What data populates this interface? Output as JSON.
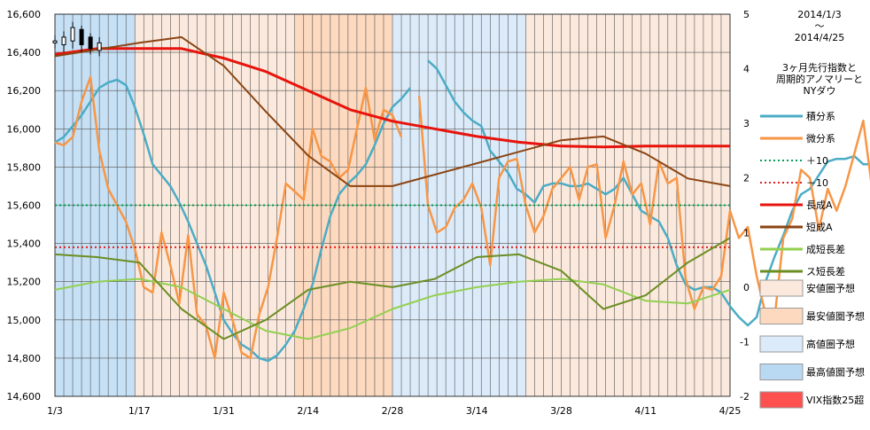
{
  "chart_data": {
    "type": "line",
    "title_lines": [
      "2014/1/3",
      "～",
      "2014/4/25"
    ],
    "subtitle_lines": [
      "3ヶ月先行指数と",
      "周期的アノマリーと",
      "NYダウ"
    ],
    "x_tick_labels": [
      "1/3",
      "1/17",
      "1/31",
      "2/14",
      "2/28",
      "3/14",
      "3/28",
      "4/11",
      "4/25"
    ],
    "left_axis": {
      "min": 14600,
      "max": 16600,
      "step": 200,
      "labels": [
        "14,600",
        "14,800",
        "15,000",
        "15,200",
        "15,400",
        "15,600",
        "15,800",
        "16,000",
        "16,200",
        "16,400",
        "16,600"
      ]
    },
    "right_axis": {
      "min": -2,
      "max": 5,
      "step": 1,
      "labels": [
        "-2",
        "-1",
        "0",
        "1",
        "2",
        "3",
        "4",
        "5"
      ]
    },
    "grid": true,
    "legend_position": "right",
    "num_days": 77,
    "background_regions": [
      {
        "kind": "最高値圏予想",
        "from": 0,
        "to": 9,
        "color": "#c6e0f5"
      },
      {
        "kind": "安値圏予想",
        "from": 9,
        "to": 27,
        "color": "#fbe9dd"
      },
      {
        "kind": "最安値圏予想",
        "from": 27,
        "to": 38,
        "color": "#fcd9bf"
      },
      {
        "kind": "高値圏予想",
        "from": 38,
        "to": 53,
        "color": "#dcebf9"
      },
      {
        "kind": "安値圏予想",
        "from": 53,
        "to": 77,
        "color": "#fbe9dd"
      }
    ],
    "dow_candles": [
      {
        "day": 0,
        "open": 16450,
        "close": 16460,
        "high": 16490,
        "low": 16420
      },
      {
        "day": 1,
        "open": 16440,
        "close": 16480,
        "high": 16510,
        "low": 16400
      },
      {
        "day": 2,
        "open": 16460,
        "close": 16530,
        "high": 16560,
        "low": 16420
      },
      {
        "day": 3,
        "open": 16520,
        "close": 16440,
        "high": 16540,
        "low": 16400
      },
      {
        "day": 4,
        "open": 16480,
        "close": 16420,
        "high": 16500,
        "low": 16390
      },
      {
        "day": 5,
        "open": 16410,
        "close": 16450,
        "high": 16480,
        "low": 16380
      }
    ],
    "series": [
      {
        "name": "積分系",
        "axis": "right",
        "color": "#4bacc6",
        "segments": [
          {
            "start": 0,
            "values": [
              2.65,
              2.75,
              2.95,
              3.15,
              3.4,
              3.65,
              3.75,
              3.8,
              3.7,
              3.3,
              2.8,
              2.25,
              2.05,
              1.85,
              1.55,
              1.2,
              0.8,
              0.4,
              -0.1,
              -0.6,
              -0.85,
              -1.05,
              -1.15,
              -1.3,
              -1.35,
              -1.25,
              -1.05,
              -0.8,
              -0.4,
              0.05,
              0.7,
              1.3,
              1.7,
              1.9,
              2.05,
              2.25,
              2.6,
              3.0,
              3.3,
              3.45,
              3.65
            ]
          },
          {
            "start": 42,
            "values": [
              4.15,
              4.0,
              3.7,
              3.4,
              3.2,
              3.05,
              2.95,
              2.5,
              2.3,
              2.1,
              1.8,
              1.7,
              1.55,
              1.85,
              1.9,
              1.9,
              1.85,
              1.85,
              1.9,
              1.8,
              1.7,
              1.8,
              2.0,
              1.7,
              1.4,
              1.3,
              1.2,
              0.9,
              0.4,
              0.05,
              -0.05,
              0.0,
              0.0,
              -0.1,
              -0.35,
              -0.55,
              -0.7,
              -0.55,
              0.1,
              0.55,
              0.95,
              1.4,
              1.7,
              1.8,
              2.05,
              2.3,
              2.35,
              2.35,
              2.4,
              2.25,
              2.25,
              2.35
            ]
          }
        ]
      },
      {
        "name": "微分系",
        "axis": "right",
        "color": "#f79646",
        "segments": [
          {
            "start": 0,
            "values": [
              2.65,
              2.6,
              2.75,
              3.4,
              3.85,
              2.5,
              1.8,
              1.5,
              1.2,
              0.7,
              0.0,
              -0.1,
              1.0,
              0.4,
              -0.3,
              0.95,
              -0.5,
              -0.7,
              -1.3,
              -0.1,
              -0.6,
              -1.2,
              -1.3,
              -0.5,
              0.0,
              0.9,
              1.9,
              1.75,
              1.6,
              2.9,
              2.4,
              2.3,
              2.0,
              2.15,
              2.9,
              3.65,
              2.7,
              3.25,
              3.15,
              2.75
            ]
          },
          {
            "start": 41,
            "values": [
              3.5,
              1.5,
              1.0,
              1.1,
              1.45,
              1.6,
              1.9,
              1.45,
              0.4,
              2.0,
              2.3,
              2.35,
              1.5,
              1.0,
              1.3,
              1.8,
              2.0,
              2.2,
              1.6,
              2.2,
              2.25,
              0.9,
              1.5,
              2.3,
              1.7,
              1.9,
              1.15,
              2.3,
              1.9,
              2.0,
              0.15,
              -0.4,
              0.0,
              -0.05,
              0.2,
              1.4,
              0.9,
              1.1,
              0.2,
              -0.5,
              -0.6,
              0.9,
              1.25,
              2.15,
              2.0,
              1.05,
              1.8,
              1.4,
              1.85,
              2.45,
              3.05,
              1.8,
              2.05,
              1.3,
              2.1,
              2.05
            ]
          }
        ]
      },
      {
        "name": "＋10",
        "axis": "left",
        "color": "#00a050",
        "style": "dotted",
        "segments": [
          {
            "start": 0,
            "values": [
              15600,
              15600
            ],
            "x_end": 76
          }
        ]
      },
      {
        "name": "－10",
        "axis": "left",
        "color": "#e02020",
        "style": "dotted",
        "segments": [
          {
            "start": 0,
            "values": [
              15380,
              15380
            ],
            "x_end": 76
          }
        ]
      },
      {
        "name": "長成A",
        "axis": "left",
        "color": "#e8130c",
        "width": 3,
        "points": [
          [
            0,
            16390
          ],
          [
            5,
            16420
          ],
          [
            10,
            16420
          ],
          [
            15,
            16420
          ],
          [
            20,
            16370
          ],
          [
            25,
            16300
          ],
          [
            30,
            16200
          ],
          [
            35,
            16100
          ],
          [
            40,
            16040
          ],
          [
            45,
            16000
          ],
          [
            50,
            15960
          ],
          [
            55,
            15930
          ],
          [
            60,
            15910
          ],
          [
            65,
            15905
          ],
          [
            70,
            15910
          ],
          [
            75,
            15910
          ],
          [
            80,
            15910
          ]
        ],
        "x_scale_note": "points in days"
      },
      {
        "name": "短成A",
        "axis": "left",
        "color": "#8b4513",
        "width": 2,
        "points": [
          [
            0,
            16380
          ],
          [
            10,
            16450
          ],
          [
            15,
            16480
          ],
          [
            20,
            16330
          ],
          [
            25,
            16090
          ],
          [
            30,
            15860
          ],
          [
            35,
            15700
          ],
          [
            40,
            15700
          ],
          [
            45,
            15760
          ],
          [
            50,
            15820
          ],
          [
            55,
            15880
          ],
          [
            60,
            15940
          ],
          [
            65,
            15960
          ],
          [
            70,
            15870
          ],
          [
            75,
            15740
          ],
          [
            80,
            15700
          ]
        ]
      },
      {
        "name": "成短長差",
        "axis": "right",
        "color": "#92d050",
        "width": 2,
        "points": [
          [
            0,
            -0.05
          ],
          [
            5,
            0.1
          ],
          [
            10,
            0.15
          ],
          [
            15,
            0.0
          ],
          [
            20,
            -0.4
          ],
          [
            25,
            -0.8
          ],
          [
            30,
            -0.95
          ],
          [
            35,
            -0.75
          ],
          [
            40,
            -0.4
          ],
          [
            45,
            -0.15
          ],
          [
            50,
            0.0
          ],
          [
            55,
            0.1
          ],
          [
            60,
            0.15
          ],
          [
            65,
            0.05
          ],
          [
            70,
            -0.25
          ],
          [
            75,
            -0.3
          ],
          [
            80,
            -0.05
          ]
        ]
      },
      {
        "name": "ス短長差",
        "axis": "right",
        "color": "#6b8e23",
        "width": 2,
        "points": [
          [
            0,
            0.6
          ],
          [
            5,
            0.55
          ],
          [
            10,
            0.45
          ],
          [
            15,
            -0.4
          ],
          [
            20,
            -0.95
          ],
          [
            25,
            -0.6
          ],
          [
            30,
            -0.05
          ],
          [
            35,
            0.1
          ],
          [
            40,
            0.0
          ],
          [
            45,
            0.15
          ],
          [
            50,
            0.55
          ],
          [
            55,
            0.6
          ],
          [
            60,
            0.3
          ],
          [
            65,
            -0.4
          ],
          [
            70,
            -0.15
          ],
          [
            75,
            0.45
          ],
          [
            80,
            0.9
          ]
        ]
      }
    ],
    "legend": [
      {
        "label": "積分系",
        "kind": "line",
        "color": "#4bacc6"
      },
      {
        "label": "微分系",
        "kind": "line",
        "color": "#f79646"
      },
      {
        "label": "＋10",
        "kind": "dotted",
        "color": "#00a050"
      },
      {
        "label": "－10",
        "kind": "dotted",
        "color": "#e02020"
      },
      {
        "label": "長成A",
        "kind": "line",
        "color": "#e8130c"
      },
      {
        "label": "短成A",
        "kind": "line",
        "color": "#8b4513"
      },
      {
        "label": "成短長差",
        "kind": "line",
        "color": "#92d050"
      },
      {
        "label": "ス短長差",
        "kind": "line",
        "color": "#6b8e23"
      },
      {
        "label": "安値圏予想",
        "kind": "box",
        "color": "#fbe9dd"
      },
      {
        "label": "最安値圏予想",
        "kind": "box",
        "color": "#fcd9bf"
      },
      {
        "label": "高値圏予想",
        "kind": "box",
        "color": "#dcebf9"
      },
      {
        "label": "最高値圏予想",
        "kind": "box",
        "color": "#b9d9f3"
      },
      {
        "label": "VIX指数25超",
        "kind": "box",
        "color": "#ff5050"
      }
    ]
  }
}
